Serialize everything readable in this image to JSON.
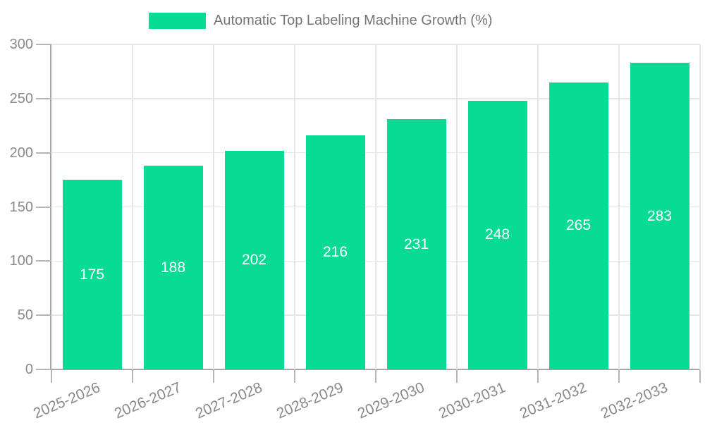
{
  "chart_data": {
    "type": "bar",
    "title": "Automatic Top Labeling Machine Growth (%)",
    "categories": [
      "2025-2026",
      "2026-2027",
      "2027-2028",
      "2028-2029",
      "2029-2030",
      "2030-2031",
      "2031-2032",
      "2032-2033"
    ],
    "values": [
      175,
      188,
      202,
      216,
      231,
      248,
      265,
      283
    ],
    "xlabel": "",
    "ylabel": "",
    "ylim": [
      0,
      300
    ],
    "yticks": [
      0,
      50,
      100,
      150,
      200,
      250,
      300
    ],
    "grid": true,
    "legend_position": "top-center",
    "bar_labels_inside": true,
    "colors": {
      "bar": "#07DB94",
      "bar_label": "#FFFFFF",
      "axis_line": "#A6A6A6",
      "tick_mark": "#B5B5B5",
      "grid_line": "#E6E6E6",
      "tick_text": "#8A8A8A",
      "legend_text": "#757575",
      "background": "#FFFFFF"
    }
  }
}
